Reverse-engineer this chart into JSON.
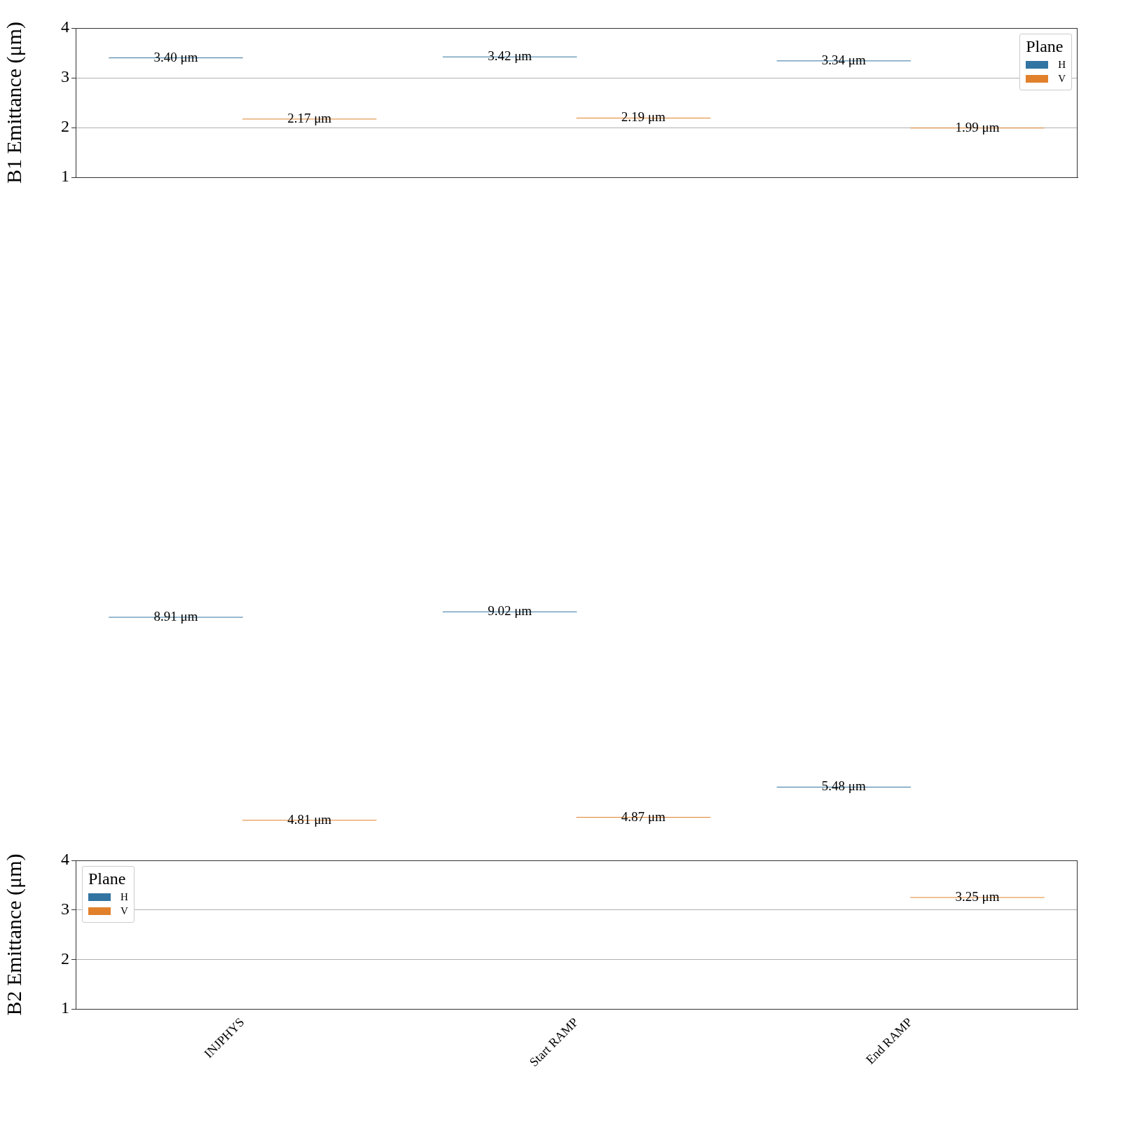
{
  "chart_data": [
    {
      "type": "box",
      "ylabel": "B1 Emittance (μm)",
      "categories": [
        null,
        null,
        null
      ],
      "ylim": [
        1,
        4
      ],
      "yticks": [
        1,
        2,
        3,
        4
      ],
      "grid": "y",
      "legend": "top right",
      "legend_title": "Plane",
      "series": [
        {
          "name": "H",
          "color": "#3274a1",
          "boxes": [
            {
              "low": 3.4,
              "q1": 3.4,
              "median": 3.4,
              "q3": 3.4,
              "high": 3.4
            },
            {
              "low": 3.42,
              "q1": 3.42,
              "median": 3.42,
              "q3": 3.42,
              "high": 3.42
            },
            {
              "low": 3.34,
              "q1": 3.34,
              "median": 3.34,
              "q3": 3.34,
              "high": 3.34
            }
          ],
          "value_labels": [
            "3.40 μm",
            "3.42 μm",
            "3.34 μm"
          ]
        },
        {
          "name": "V",
          "color": "#e1812c",
          "boxes": [
            {
              "low": 2.17,
              "q1": 2.17,
              "median": 2.17,
              "q3": 2.17,
              "high": 2.17
            },
            {
              "low": 2.19,
              "q1": 2.19,
              "median": 2.19,
              "q3": 2.19,
              "high": 2.19
            },
            {
              "low": 1.99,
              "q1": 1.99,
              "median": 1.99,
              "q3": 1.99,
              "high": 1.99
            }
          ],
          "value_labels": [
            "2.17 μm",
            "2.19 μm",
            "1.99 μm"
          ]
        }
      ]
    },
    {
      "type": "box",
      "ylabel": "B2 Emittance (μm)",
      "categories": [
        "INJPHYS",
        "Start RAMP",
        "End RAMP"
      ],
      "ylim": [
        1,
        4
      ],
      "yticks": [
        1,
        2,
        3,
        4
      ],
      "grid": "y",
      "legend": "top left",
      "legend_title": "Plane",
      "series": [
        {
          "name": "H",
          "color": "#3274a1",
          "boxes": [
            {
              "low": 8.91,
              "q1": 8.91,
              "median": 8.91,
              "q3": 8.91,
              "high": 8.91
            },
            {
              "low": 9.02,
              "q1": 9.02,
              "median": 9.02,
              "q3": 9.02,
              "high": 9.02
            },
            {
              "low": 5.48,
              "q1": 5.48,
              "median": 5.48,
              "q3": 5.48,
              "high": 5.48
            }
          ],
          "value_labels": [
            "8.91 μm",
            "9.02 μm",
            "5.48 μm"
          ]
        },
        {
          "name": "V",
          "color": "#e1812c",
          "boxes": [
            {
              "low": 4.81,
              "q1": 4.81,
              "median": 4.81,
              "q3": 4.81,
              "high": 4.81
            },
            {
              "low": 4.87,
              "q1": 4.87,
              "median": 4.87,
              "q3": 4.87,
              "high": 4.87
            },
            {
              "low": 3.25,
              "q1": 3.25,
              "median": 3.25,
              "q3": 3.25,
              "high": 3.25
            }
          ],
          "value_labels": [
            "4.81 μm",
            "4.87 μm",
            "3.25 μm"
          ]
        }
      ]
    }
  ]
}
